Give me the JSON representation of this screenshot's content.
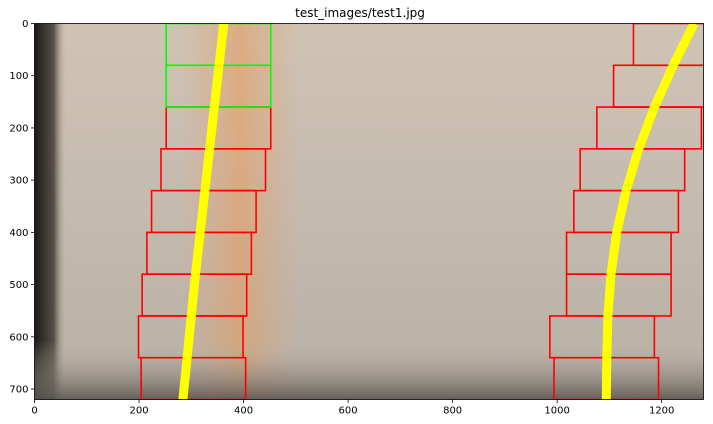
{
  "chart_data": {
    "type": "image-overlay",
    "title": "test_images/test1.jpg",
    "xlabel": "",
    "ylabel": "",
    "xlim": [
      0,
      1280
    ],
    "ylim": [
      720,
      0
    ],
    "x_ticks": [
      0,
      200,
      400,
      600,
      800,
      1000,
      1200
    ],
    "y_ticks": [
      0,
      100,
      200,
      300,
      400,
      500,
      600,
      700
    ],
    "grid": false,
    "colors": {
      "lane_fit": "#ffff00",
      "window_active": "#ff0000",
      "window_search": "#00ff00",
      "image_base": "#c5bcb1",
      "left_dark_edge": "#2a2622",
      "road_bottom": "#5a5550"
    },
    "left_lane_fit": {
      "y": [
        0,
        80,
        160,
        240,
        320,
        400,
        480,
        560,
        640,
        720
      ],
      "x": [
        362,
        353,
        344,
        335,
        326,
        317,
        308,
        300,
        292,
        284
      ]
    },
    "right_lane_fit": {
      "y": [
        0,
        80,
        160,
        240,
        320,
        400,
        480,
        560,
        640,
        720
      ],
      "x": [
        1262,
        1222,
        1186,
        1156,
        1132,
        1114,
        1103,
        1097,
        1095,
        1094
      ]
    },
    "left_windows": [
      {
        "x0": 204,
        "x1": 404,
        "y0": 640,
        "y1": 720,
        "color": "red"
      },
      {
        "x0": 199,
        "x1": 399,
        "y0": 560,
        "y1": 640,
        "color": "red"
      },
      {
        "x0": 206,
        "x1": 406,
        "y0": 480,
        "y1": 560,
        "color": "red"
      },
      {
        "x0": 215,
        "x1": 415,
        "y0": 400,
        "y1": 480,
        "color": "red"
      },
      {
        "x0": 224,
        "x1": 424,
        "y0": 320,
        "y1": 400,
        "color": "red"
      },
      {
        "x0": 242,
        "x1": 442,
        "y0": 240,
        "y1": 320,
        "color": "red"
      },
      {
        "x0": 252,
        "x1": 452,
        "y0": 160,
        "y1": 240,
        "color": "red"
      },
      {
        "x0": 252,
        "x1": 452,
        "y0": 80,
        "y1": 160,
        "color": "green"
      },
      {
        "x0": 252,
        "x1": 452,
        "y0": 0,
        "y1": 80,
        "color": "green"
      }
    ],
    "right_windows": [
      {
        "x0": 994,
        "x1": 1194,
        "y0": 640,
        "y1": 720,
        "color": "red"
      },
      {
        "x0": 986,
        "x1": 1186,
        "y0": 560,
        "y1": 640,
        "color": "red"
      },
      {
        "x0": 1018,
        "x1": 1218,
        "y0": 480,
        "y1": 560,
        "color": "red"
      },
      {
        "x0": 1018,
        "x1": 1218,
        "y0": 400,
        "y1": 480,
        "color": "red"
      },
      {
        "x0": 1032,
        "x1": 1232,
        "y0": 320,
        "y1": 400,
        "color": "red"
      },
      {
        "x0": 1044,
        "x1": 1244,
        "y0": 240,
        "y1": 320,
        "color": "red"
      },
      {
        "x0": 1076,
        "x1": 1276,
        "y0": 160,
        "y1": 240,
        "color": "red"
      },
      {
        "x0": 1108,
        "x1": 1308,
        "y0": 80,
        "y1": 160,
        "color": "red"
      },
      {
        "x0": 1146,
        "x1": 1346,
        "y0": 0,
        "y1": 80,
        "color": "red"
      }
    ]
  }
}
